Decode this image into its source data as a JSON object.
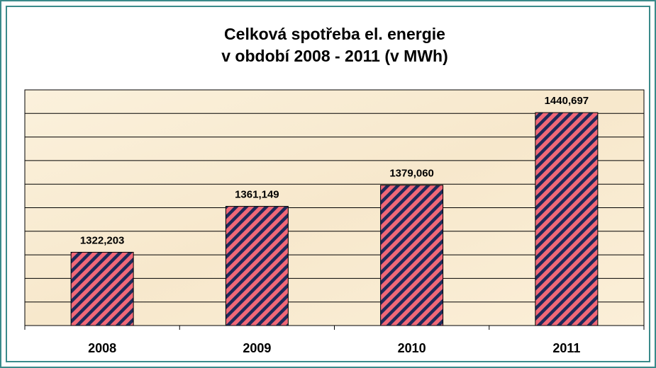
{
  "chart_data": {
    "type": "bar",
    "title": [
      "Celková spotřeba el. energie",
      "v období 2008 - 2011 (v MWh)"
    ],
    "categories": [
      "2008",
      "2009",
      "2010",
      "2011"
    ],
    "values": [
      1322.203,
      1361.149,
      1379.06,
      1440.697
    ],
    "value_labels": [
      "1322,203",
      "1361,149",
      "1379,060",
      "1440,697"
    ],
    "color": "#f06878",
    "hatch_color": "#1e2a5a",
    "ylim": [
      1260,
      1460
    ],
    "yticks": [
      1260,
      1280,
      1300,
      1320,
      1340,
      1360,
      1380,
      1400,
      1420,
      1440,
      1460
    ],
    "grid": true
  }
}
